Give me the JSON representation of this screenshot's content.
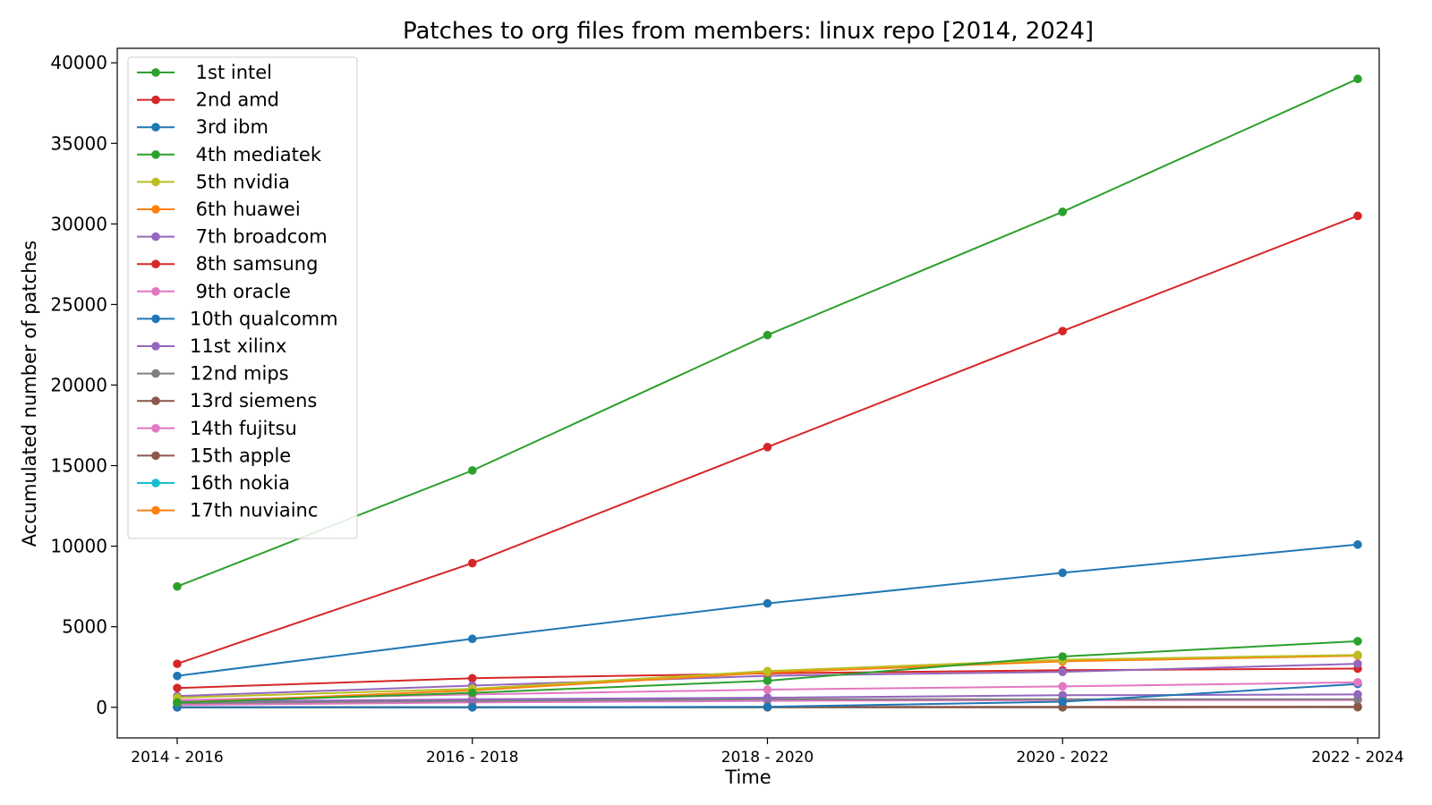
{
  "chart_data": {
    "type": "line",
    "title": "Patches to org files from members: linux repo [2014, 2024]",
    "xlabel": "Time",
    "ylabel": "Accumulated number of patches",
    "categories": [
      "2014 - 2016",
      "2016 - 2018",
      "2018 - 2020",
      "2020 - 2022",
      "2022 - 2024"
    ],
    "ylim": [
      -1900,
      40900
    ],
    "yticks": [
      0,
      5000,
      10000,
      15000,
      20000,
      25000,
      30000,
      35000,
      40000
    ],
    "grid": false,
    "legend_position": "top-left",
    "series": [
      {
        "name": " 1st intel",
        "color": "#2ca02c",
        "values": [
          7500,
          14700,
          23100,
          30750,
          39000
        ]
      },
      {
        "name": " 2nd amd",
        "color": "#d62728",
        "values": [
          2700,
          8950,
          16150,
          23350,
          30500
        ]
      },
      {
        "name": " 3rd ibm",
        "color": "#1f77b4",
        "values": [
          1950,
          4250,
          6450,
          8350,
          10100
        ]
      },
      {
        "name": " 4th mediatek",
        "color": "#2ca02c",
        "values": [
          300,
          900,
          1650,
          3150,
          4100
        ]
      },
      {
        "name": " 5th nvidia",
        "color": "#bcbd22",
        "values": [
          600,
          1150,
          2250,
          2950,
          3250
        ]
      },
      {
        "name": " 6th huawei",
        "color": "#ff7f0e",
        "values": [
          300,
          1050,
          2150,
          2850,
          3200
        ]
      },
      {
        "name": " 7th broadcom",
        "color": "#9467bd",
        "values": [
          700,
          1350,
          1950,
          2200,
          2700
        ]
      },
      {
        "name": " 8th samsung",
        "color": "#d62728",
        "values": [
          1200,
          1800,
          2100,
          2300,
          2400
        ]
      },
      {
        "name": " 9th oracle",
        "color": "#e377c2",
        "values": [
          450,
          800,
          1100,
          1300,
          1550
        ]
      },
      {
        "name": "10th qualcomm",
        "color": "#1f77b4",
        "values": [
          0,
          0,
          30,
          350,
          1450
        ]
      },
      {
        "name": "11st xilinx",
        "color": "#9467bd",
        "values": [
          350,
          500,
          600,
          750,
          800
        ]
      },
      {
        "name": "12nd mips",
        "color": "#7f7f7f",
        "values": [
          250,
          400,
          500,
          500,
          500
        ]
      },
      {
        "name": "13rd siemens",
        "color": "#8c564b",
        "values": [
          0,
          10,
          20,
          30,
          40
        ]
      },
      {
        "name": "14th fujitsu",
        "color": "#e377c2",
        "values": [
          150,
          300,
          400,
          450,
          450
        ]
      },
      {
        "name": "15th apple",
        "color": "#8c564b",
        "values": [
          0,
          0,
          0,
          0,
          20
        ]
      },
      {
        "name": "16th nokia",
        "color": "#17becf",
        "values": [
          0,
          0,
          0,
          0,
          10
        ]
      },
      {
        "name": "17th nuviainc",
        "color": "#ff7f0e",
        "values": [
          0,
          0,
          0,
          0,
          0
        ]
      }
    ]
  }
}
